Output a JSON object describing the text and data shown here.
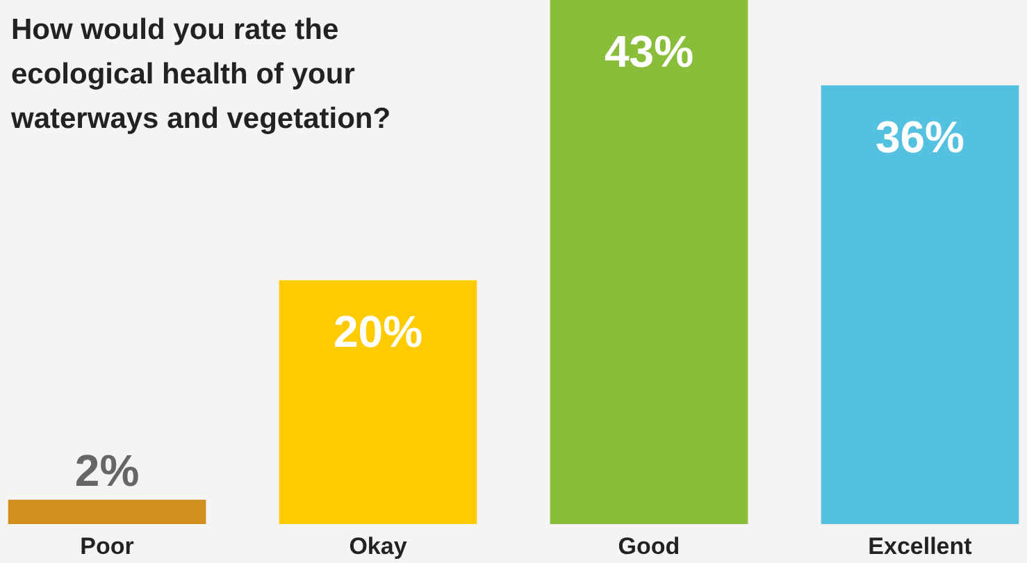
{
  "chart_data": {
    "type": "bar",
    "title": "How would you rate the ecological health of your waterways and vegetation?",
    "categories": [
      "Poor",
      "Okay",
      "Good",
      "Excellent"
    ],
    "values": [
      2,
      20,
      43,
      36
    ],
    "colors": [
      "#d38f1b",
      "#fecb00",
      "#8abd39",
      "#54c1e0"
    ],
    "value_labels": [
      "2%",
      "20%",
      "43%",
      "36%"
    ],
    "grid": false
  }
}
